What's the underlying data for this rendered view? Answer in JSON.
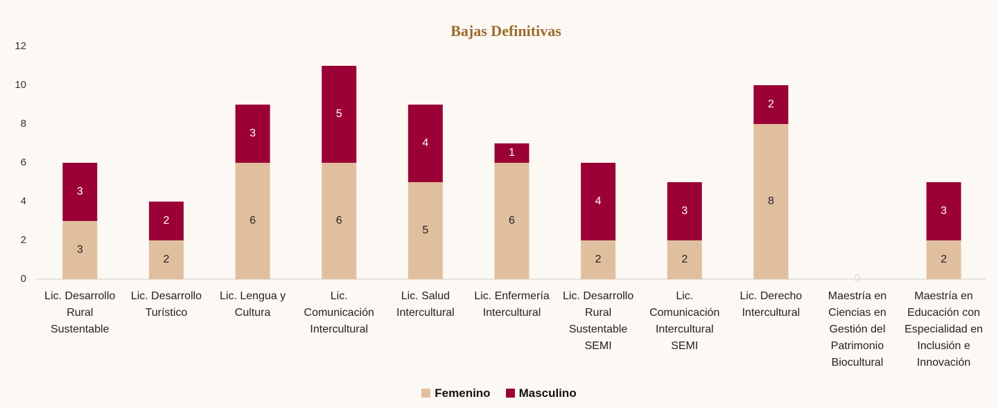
{
  "chart_data": {
    "type": "stacked_bar",
    "title": "Bajas Definitivas",
    "categories": [
      "Lic. Desarrollo Rural Sustentable",
      "Lic. Desarrollo Turístico",
      "Lic. Lengua y Cultura",
      "Lic. Comunicación Intercultural",
      "Lic. Salud Intercultural",
      "Lic. Enfermería Intercultural",
      "Lic. Desarrollo Rural Sustentable SEMI",
      "Lic. Comunicación Intercultural SEMI",
      "Lic. Derecho Intercultural",
      "Maestría en Ciencias en Gestión del Patrimonio Biocultural",
      "Maestría en Educación con Especialidad en Inclusión e Innovación"
    ],
    "series": [
      {
        "name": "Femenino",
        "color": "#e0bf9f",
        "values": [
          3,
          2,
          6,
          6,
          5,
          6,
          2,
          2,
          8,
          0,
          2
        ]
      },
      {
        "name": "Masculino",
        "color": "#9b0036",
        "values": [
          3,
          2,
          3,
          5,
          4,
          1,
          4,
          3,
          2,
          0,
          3
        ]
      }
    ],
    "ylim": [
      0,
      12
    ],
    "yticks": [
      0,
      2,
      4,
      6,
      8,
      10,
      12
    ],
    "grid": false,
    "legend": "bottom"
  }
}
